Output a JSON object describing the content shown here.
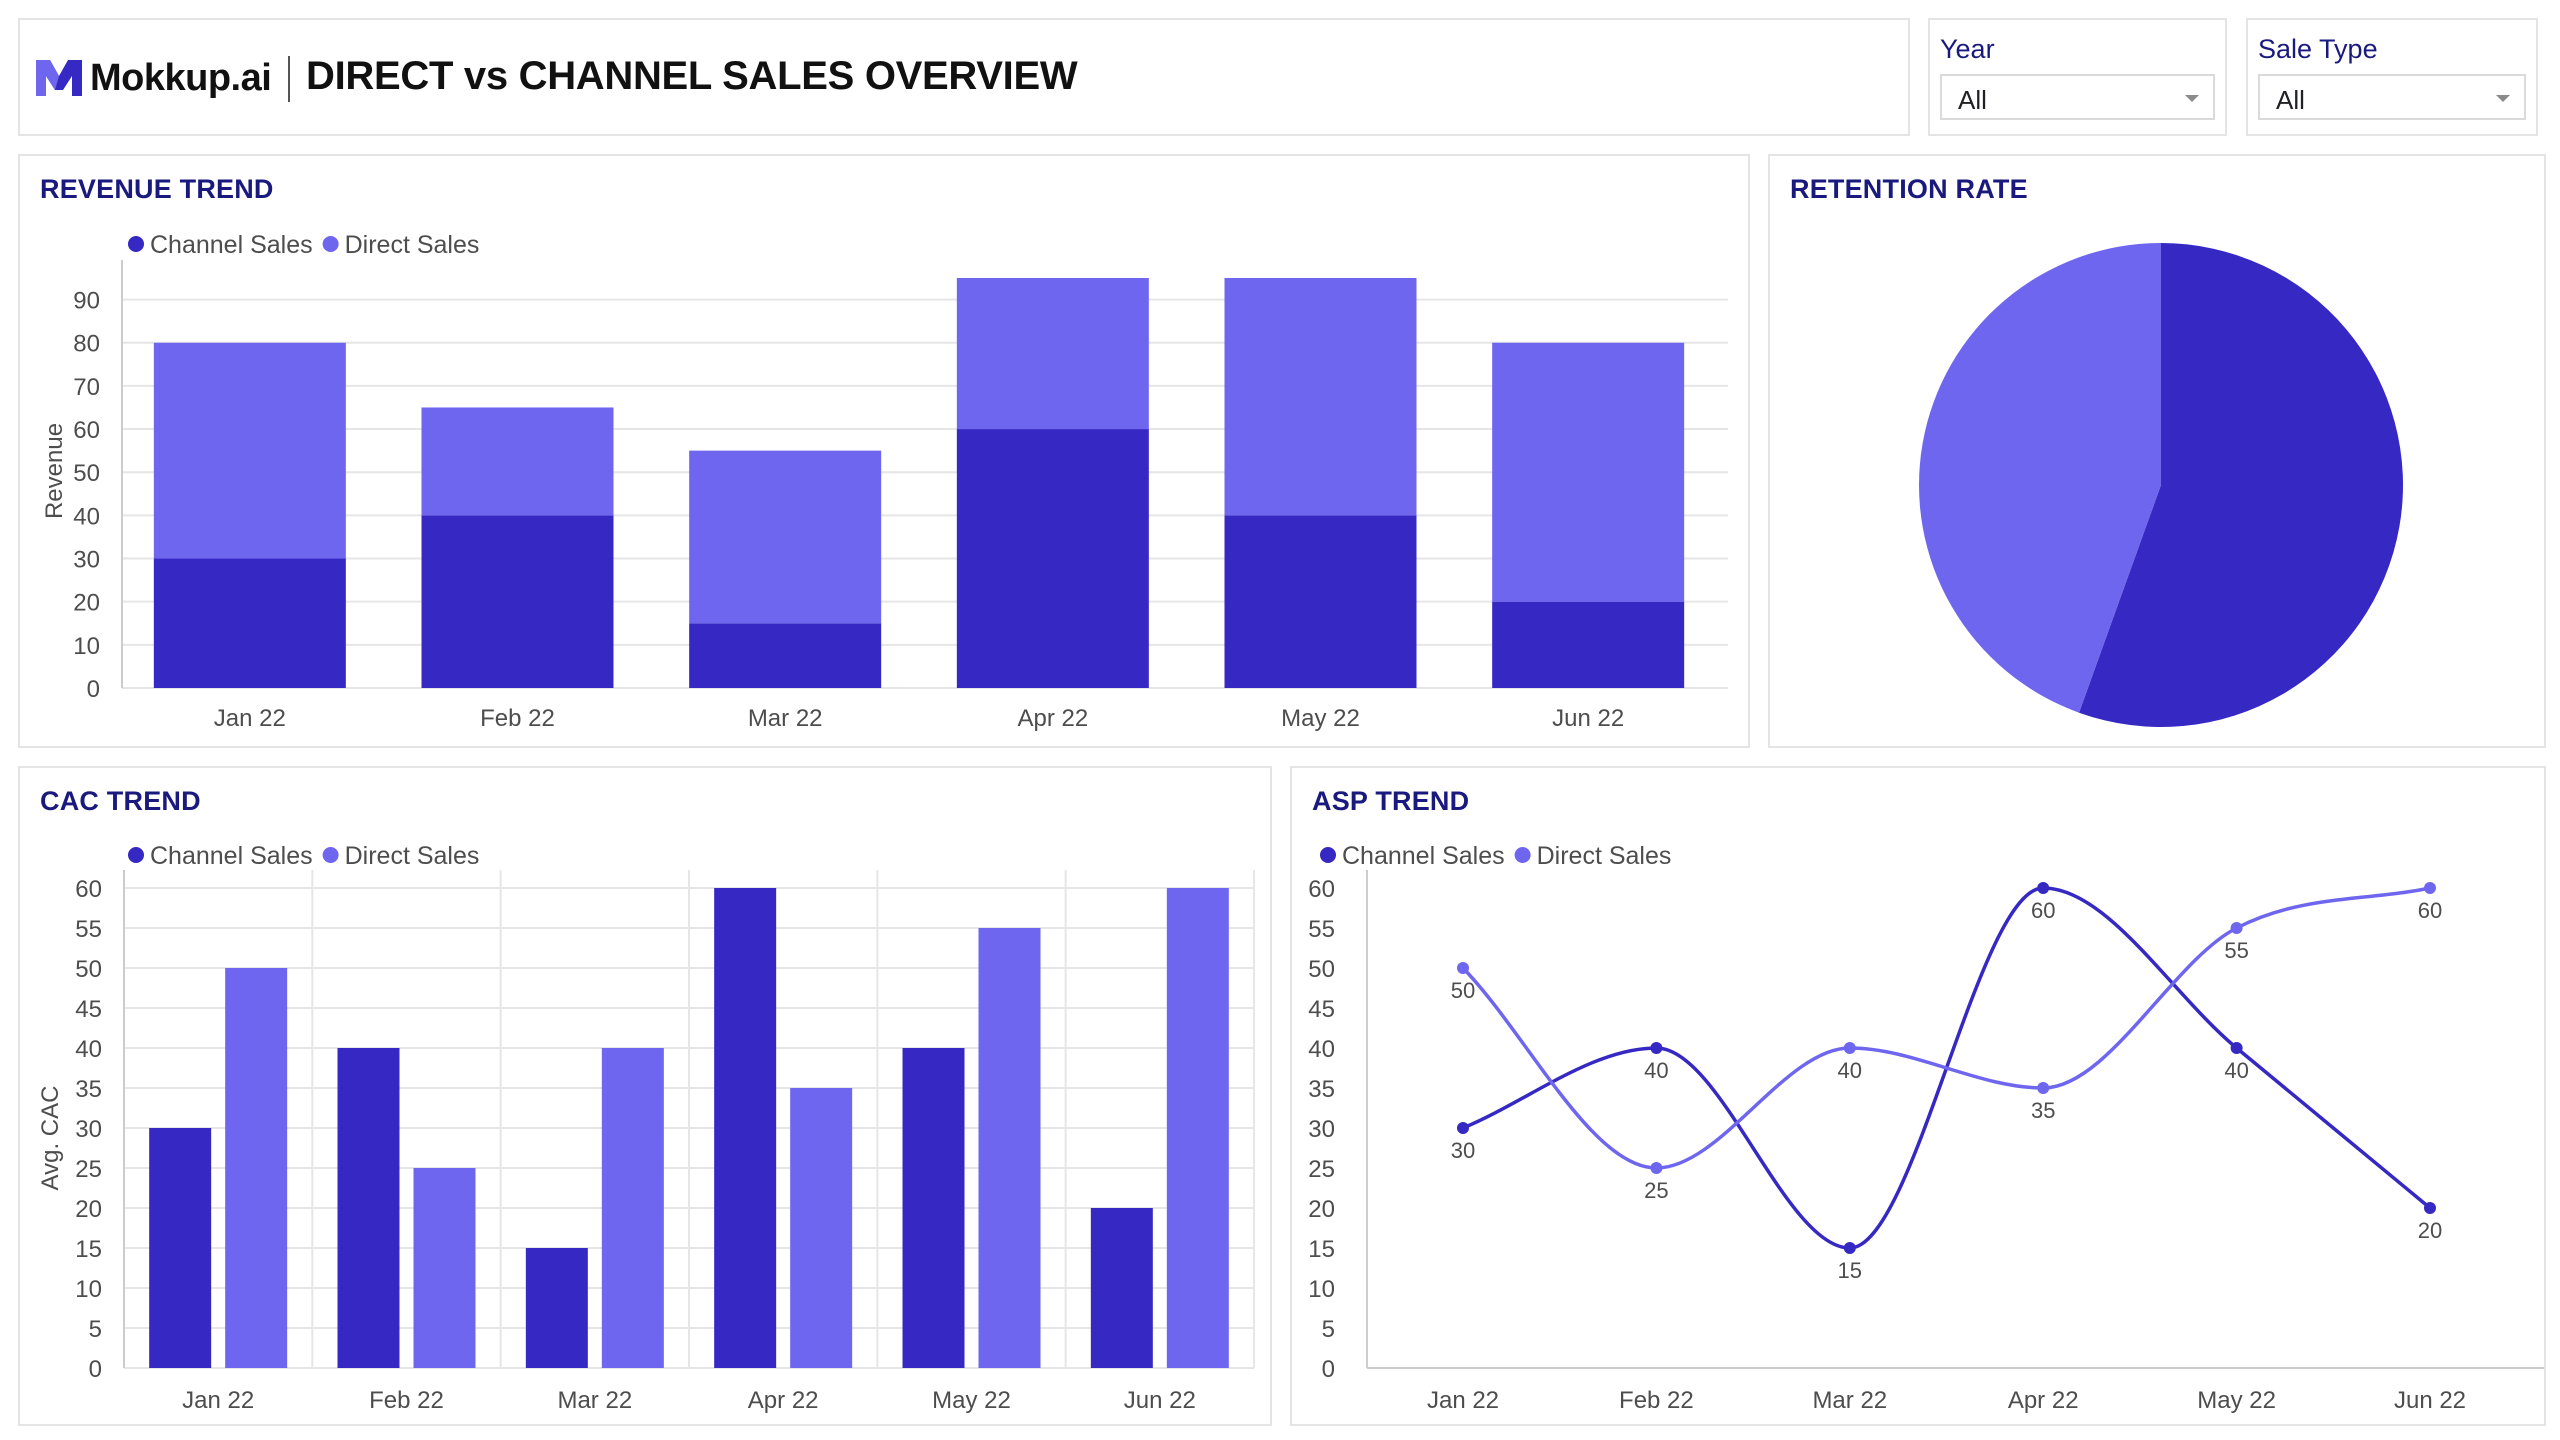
{
  "header": {
    "logo_text": "Mokkup.ai",
    "title": "DIRECT vs CHANNEL SALES OVERVIEW"
  },
  "filters": {
    "year": {
      "label": "Year",
      "value": "All"
    },
    "sale_type": {
      "label": "Sale Type",
      "value": "All"
    }
  },
  "colors": {
    "channel": "#3629c3",
    "direct": "#6f66f0",
    "title": "#1a1a7e",
    "grid": "#e6e6e6",
    "axis_text": "#4d4d4d"
  },
  "chart_data": [
    {
      "type": "bar",
      "stacked": true,
      "title": "REVENUE TREND",
      "xlabel": "",
      "ylabel": "Revenue",
      "categories": [
        "Jan 22",
        "Feb 22",
        "Mar 22",
        "Apr 22",
        "May 22",
        "Jun 22"
      ],
      "series": [
        {
          "name": "Channel Sales",
          "values": [
            30,
            40,
            15,
            60,
            40,
            20
          ]
        },
        {
          "name": "Direct Sales",
          "values": [
            50,
            25,
            40,
            35,
            55,
            60
          ]
        }
      ],
      "yticks": [
        0,
        10,
        20,
        30,
        40,
        50,
        60,
        70,
        80,
        90
      ],
      "ylim": [
        0,
        95
      ],
      "grid": true,
      "legend": "top-left"
    },
    {
      "type": "pie",
      "title": "RETENTION RATE",
      "slices": [
        {
          "name": "Channel Sales",
          "value": 55.5
        },
        {
          "name": "Direct Sales",
          "value": 44.5
        }
      ]
    },
    {
      "type": "bar",
      "title": "CAC TREND",
      "xlabel": "",
      "ylabel": "Avg. CAC",
      "categories": [
        "Jan 22",
        "Feb 22",
        "Mar 22",
        "Apr 22",
        "May 22",
        "Jun 22"
      ],
      "series": [
        {
          "name": "Channel Sales",
          "values": [
            30,
            40,
            15,
            60,
            40,
            20
          ]
        },
        {
          "name": "Direct Sales",
          "values": [
            50,
            25,
            40,
            35,
            55,
            60
          ]
        }
      ],
      "yticks": [
        0,
        5,
        10,
        15,
        20,
        25,
        30,
        35,
        40,
        45,
        50,
        55,
        60
      ],
      "ylim": [
        0,
        60
      ],
      "grid": true,
      "legend": "top-left"
    },
    {
      "type": "line",
      "smooth": true,
      "title": "ASP TREND",
      "xlabel": "",
      "ylabel": "",
      "categories": [
        "Jan 22",
        "Feb 22",
        "Mar 22",
        "Apr 22",
        "May 22",
        "Jun 22"
      ],
      "series": [
        {
          "name": "Channel Sales",
          "values": [
            30,
            40,
            15,
            60,
            40,
            20
          ]
        },
        {
          "name": "Direct Sales",
          "values": [
            50,
            25,
            40,
            35,
            55,
            60
          ]
        }
      ],
      "yticks": [
        0,
        5,
        10,
        15,
        20,
        25,
        30,
        35,
        40,
        45,
        50,
        55,
        60
      ],
      "ylim": [
        0,
        60
      ],
      "data_labels": true,
      "legend": "top-left"
    }
  ]
}
